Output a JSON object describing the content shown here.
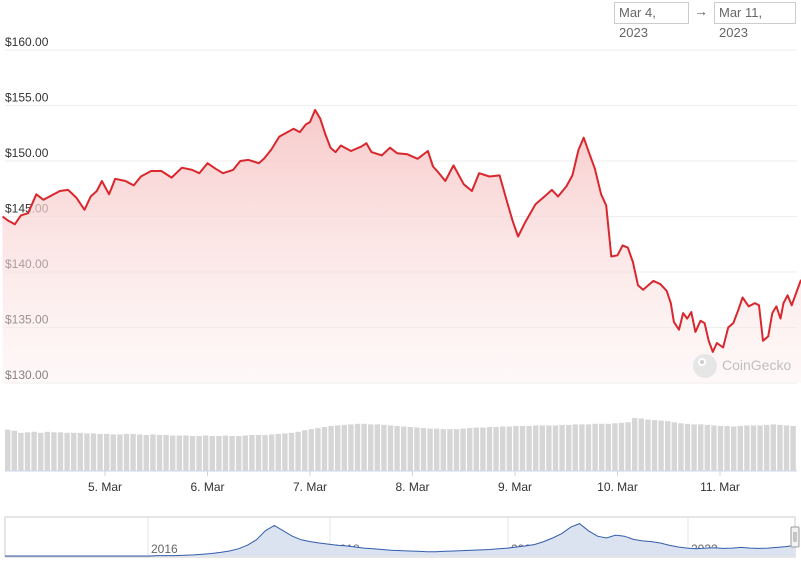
{
  "range": {
    "from": "Mar 4, 2023",
    "arrow": "→",
    "to": "Mar 11, 2023"
  },
  "watermark": "CoinGecko",
  "colors": {
    "line": "#d9272e",
    "fill_top": "#f7c4c4",
    "volume": "#d6d6d6",
    "navigator_line": "#335cad",
    "navigator_fill": "#dbe3f1",
    "grid": "#eeeeee"
  },
  "chart_data": [
    {
      "type": "line",
      "name": "price",
      "yticks": [
        "$130.00",
        "$135.00",
        "$140.00",
        "$145.00",
        "$150.00",
        "$155.00",
        "$160.00"
      ],
      "ylim": [
        130,
        160
      ],
      "xticks": [
        "5. Mar",
        "6. Mar",
        "7. Mar",
        "8. Mar",
        "9. Mar",
        "10. Mar",
        "11. Mar"
      ],
      "x_day_range": [
        4.0,
        11.65
      ],
      "points": [
        [
          4.0,
          145.0
        ],
        [
          4.06,
          144.6
        ],
        [
          4.12,
          144.3
        ],
        [
          4.18,
          145.1
        ],
        [
          4.25,
          145.3
        ],
        [
          4.33,
          147.0
        ],
        [
          4.4,
          146.5
        ],
        [
          4.48,
          146.9
        ],
        [
          4.56,
          147.3
        ],
        [
          4.64,
          147.4
        ],
        [
          4.72,
          146.7
        ],
        [
          4.8,
          145.6
        ],
        [
          4.86,
          146.8
        ],
        [
          4.92,
          147.3
        ],
        [
          4.97,
          148.2
        ],
        [
          5.04,
          147.0
        ],
        [
          5.1,
          148.4
        ],
        [
          5.2,
          148.2
        ],
        [
          5.28,
          147.8
        ],
        [
          5.35,
          148.6
        ],
        [
          5.45,
          149.1
        ],
        [
          5.55,
          149.1
        ],
        [
          5.65,
          148.5
        ],
        [
          5.75,
          149.4
        ],
        [
          5.85,
          149.2
        ],
        [
          5.92,
          148.9
        ],
        [
          6.0,
          149.8
        ],
        [
          6.08,
          149.3
        ],
        [
          6.15,
          148.9
        ],
        [
          6.25,
          149.2
        ],
        [
          6.32,
          150.0
        ],
        [
          6.4,
          150.1
        ],
        [
          6.5,
          149.8
        ],
        [
          6.55,
          150.2
        ],
        [
          6.62,
          151.0
        ],
        [
          6.7,
          152.2
        ],
        [
          6.78,
          152.6
        ],
        [
          6.84,
          152.9
        ],
        [
          6.9,
          152.6
        ],
        [
          6.96,
          153.3
        ],
        [
          7.0,
          153.5
        ],
        [
          7.05,
          154.6
        ],
        [
          7.1,
          153.8
        ],
        [
          7.15,
          152.4
        ],
        [
          7.2,
          151.2
        ],
        [
          7.25,
          150.8
        ],
        [
          7.3,
          151.4
        ],
        [
          7.4,
          150.9
        ],
        [
          7.5,
          151.3
        ],
        [
          7.55,
          151.6
        ],
        [
          7.6,
          150.8
        ],
        [
          7.7,
          150.5
        ],
        [
          7.78,
          151.2
        ],
        [
          7.85,
          150.7
        ],
        [
          7.95,
          150.6
        ],
        [
          8.05,
          150.2
        ],
        [
          8.15,
          150.9
        ],
        [
          8.2,
          149.5
        ],
        [
          8.25,
          149.0
        ],
        [
          8.32,
          148.2
        ],
        [
          8.4,
          149.6
        ],
        [
          8.5,
          147.9
        ],
        [
          8.58,
          147.3
        ],
        [
          8.65,
          148.9
        ],
        [
          8.75,
          148.6
        ],
        [
          8.85,
          148.7
        ],
        [
          8.92,
          146.4
        ],
        [
          8.98,
          144.5
        ],
        [
          9.03,
          143.2
        ],
        [
          9.1,
          144.5
        ],
        [
          9.2,
          146.1
        ],
        [
          9.3,
          146.9
        ],
        [
          9.36,
          147.4
        ],
        [
          9.42,
          146.8
        ],
        [
          9.5,
          147.7
        ],
        [
          9.56,
          148.7
        ],
        [
          9.62,
          151.0
        ],
        [
          9.67,
          152.1
        ],
        [
          9.72,
          150.8
        ],
        [
          9.78,
          149.3
        ],
        [
          9.84,
          147.0
        ],
        [
          9.89,
          146.0
        ],
        [
          9.94,
          141.4
        ],
        [
          10.0,
          141.5
        ],
        [
          10.05,
          142.4
        ],
        [
          10.1,
          142.2
        ],
        [
          10.15,
          140.9
        ],
        [
          10.2,
          138.8
        ],
        [
          10.25,
          138.4
        ],
        [
          10.3,
          138.8
        ],
        [
          10.35,
          139.2
        ],
        [
          10.42,
          138.9
        ],
        [
          10.48,
          138.3
        ],
        [
          10.52,
          137.2
        ],
        [
          10.55,
          135.5
        ],
        [
          10.6,
          134.8
        ],
        [
          10.64,
          136.3
        ],
        [
          10.68,
          135.8
        ],
        [
          10.72,
          136.4
        ],
        [
          10.76,
          134.6
        ],
        [
          10.81,
          135.6
        ],
        [
          10.85,
          135.4
        ],
        [
          10.89,
          133.8
        ],
        [
          10.93,
          132.8
        ],
        [
          10.97,
          133.6
        ],
        [
          11.03,
          133.2
        ],
        [
          11.08,
          135.0
        ],
        [
          11.13,
          135.4
        ],
        [
          11.18,
          136.6
        ],
        [
          11.22,
          137.7
        ],
        [
          11.28,
          136.9
        ],
        [
          11.34,
          137.2
        ],
        [
          11.38,
          137.0
        ],
        [
          11.42,
          133.8
        ],
        [
          11.47,
          134.2
        ],
        [
          11.51,
          136.3
        ],
        [
          11.55,
          136.9
        ],
        [
          11.59,
          135.8
        ],
        [
          11.62,
          137.2
        ],
        [
          11.66,
          137.9
        ],
        [
          11.7,
          137.0
        ],
        [
          11.75,
          138.3
        ],
        [
          11.79,
          139.3
        ]
      ]
    },
    {
      "type": "bar",
      "name": "volume",
      "relative_values": [
        0.78,
        0.76,
        0.72,
        0.73,
        0.74,
        0.72,
        0.74,
        0.73,
        0.73,
        0.72,
        0.72,
        0.72,
        0.71,
        0.71,
        0.7,
        0.7,
        0.69,
        0.69,
        0.7,
        0.7,
        0.69,
        0.68,
        0.69,
        0.68,
        0.68,
        0.67,
        0.67,
        0.67,
        0.66,
        0.66,
        0.67,
        0.66,
        0.66,
        0.67,
        0.66,
        0.66,
        0.67,
        0.68,
        0.68,
        0.68,
        0.69,
        0.7,
        0.71,
        0.72,
        0.74,
        0.77,
        0.79,
        0.81,
        0.83,
        0.85,
        0.86,
        0.87,
        0.88,
        0.89,
        0.89,
        0.88,
        0.88,
        0.87,
        0.86,
        0.85,
        0.84,
        0.83,
        0.82,
        0.81,
        0.8,
        0.8,
        0.79,
        0.79,
        0.79,
        0.8,
        0.81,
        0.82,
        0.82,
        0.83,
        0.83,
        0.84,
        0.84,
        0.85,
        0.85,
        0.85,
        0.86,
        0.86,
        0.86,
        0.86,
        0.87,
        0.87,
        0.88,
        0.88,
        0.88,
        0.89,
        0.89,
        0.89,
        0.9,
        0.91,
        0.92,
        1.0,
        0.99,
        0.97,
        0.96,
        0.95,
        0.94,
        0.92,
        0.9,
        0.89,
        0.88,
        0.88,
        0.87,
        0.86,
        0.85,
        0.85,
        0.84,
        0.85,
        0.86,
        0.86,
        0.86,
        0.87,
        0.88,
        0.87,
        0.86,
        0.85
      ]
    },
    {
      "type": "area",
      "name": "navigator",
      "xticks": [
        "2016",
        "2018",
        "2020",
        "2022"
      ],
      "relative_values": [
        0.0,
        0.0,
        0.0,
        0.0,
        0.0,
        0.0,
        0.0,
        0.0,
        0.0,
        0.0,
        0.0,
        0.0,
        0.0,
        0.0,
        0.0,
        0.0,
        0.0,
        0.01,
        0.01,
        0.01,
        0.02,
        0.03,
        0.05,
        0.07,
        0.1,
        0.14,
        0.2,
        0.3,
        0.45,
        0.7,
        0.85,
        0.7,
        0.55,
        0.45,
        0.4,
        0.36,
        0.33,
        0.3,
        0.28,
        0.25,
        0.22,
        0.2,
        0.18,
        0.16,
        0.15,
        0.14,
        0.13,
        0.12,
        0.12,
        0.13,
        0.14,
        0.15,
        0.16,
        0.17,
        0.18,
        0.2,
        0.22,
        0.25,
        0.28,
        0.32,
        0.4,
        0.5,
        0.62,
        0.8,
        0.9,
        0.7,
        0.55,
        0.5,
        0.58,
        0.55,
        0.46,
        0.42,
        0.4,
        0.36,
        0.3,
        0.25,
        0.22,
        0.2,
        0.22,
        0.23,
        0.21,
        0.22,
        0.24,
        0.22,
        0.21,
        0.22,
        0.24,
        0.26,
        0.3
      ]
    }
  ]
}
